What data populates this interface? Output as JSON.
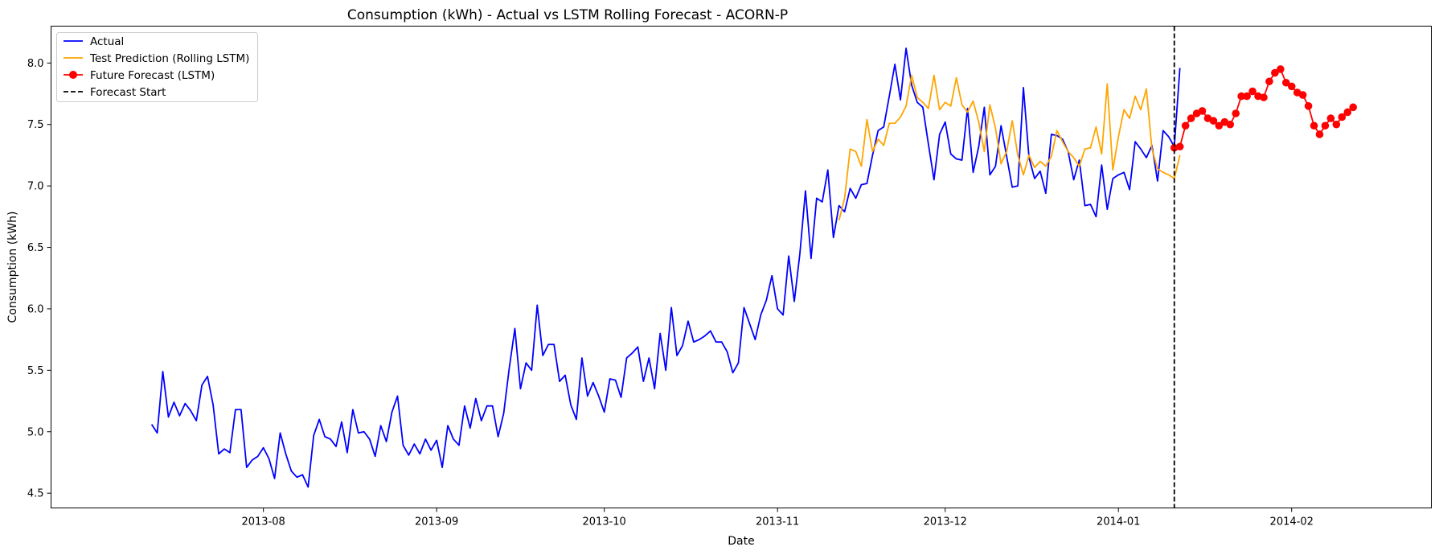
{
  "chart_data": {
    "type": "line",
    "title": "Consumption (kWh) - Actual vs LSTM Rolling Forecast - ACORN-P",
    "xlabel": "Date",
    "ylabel": "Consumption (kWh)",
    "x_range": [
      "2013-06-24",
      "2014-02-26"
    ],
    "ylim": [
      4.38,
      8.3
    ],
    "x_ticks": [
      "2013-08-01",
      "2013-09-01",
      "2013-10-01",
      "2013-11-01",
      "2013-12-01",
      "2014-01-01",
      "2014-02-01"
    ],
    "x_tick_labels": [
      "2013-08",
      "2013-09",
      "2013-10",
      "2013-11",
      "2013-12",
      "2014-01",
      "2014-02"
    ],
    "y_ticks": [
      4.5,
      5.0,
      5.5,
      6.0,
      6.5,
      7.0,
      7.5,
      8.0
    ],
    "y_tick_labels": [
      "4.5",
      "5.0",
      "5.5",
      "6.0",
      "6.5",
      "7.0",
      "7.5",
      "8.0"
    ],
    "grid": false,
    "legend_position": "top-left",
    "forecast_start": "2014-01-11",
    "series": [
      {
        "name": "Actual",
        "color": "#0000ff",
        "marker": "none",
        "start": "2013-07-12",
        "values": [
          5.06,
          4.99,
          5.49,
          5.12,
          5.24,
          5.13,
          5.23,
          5.17,
          5.09,
          5.38,
          5.45,
          5.22,
          4.82,
          4.86,
          4.83,
          5.18,
          5.18,
          4.71,
          4.77,
          4.8,
          4.87,
          4.78,
          4.62,
          4.99,
          4.82,
          4.68,
          4.63,
          4.65,
          4.55,
          4.97,
          5.1,
          4.96,
          4.94,
          4.88,
          5.08,
          4.83,
          5.18,
          4.99,
          5.0,
          4.94,
          4.8,
          5.05,
          4.92,
          5.16,
          5.29,
          4.89,
          4.81,
          4.9,
          4.82,
          4.94,
          4.85,
          4.93,
          4.71,
          5.05,
          4.94,
          4.89,
          5.21,
          5.03,
          5.27,
          5.09,
          5.21,
          5.21,
          4.96,
          5.15,
          5.52,
          5.84,
          5.35,
          5.56,
          5.5,
          6.03,
          5.62,
          5.71,
          5.71,
          5.41,
          5.46,
          5.22,
          5.1,
          5.6,
          5.29,
          5.4,
          5.29,
          5.16,
          5.43,
          5.42,
          5.28,
          5.6,
          5.64,
          5.69,
          5.41,
          5.6,
          5.35,
          5.8,
          5.5,
          6.01,
          5.62,
          5.7,
          5.9,
          5.73,
          5.75,
          5.78,
          5.82,
          5.73,
          5.73,
          5.65,
          5.48,
          5.56,
          6.01,
          5.88,
          5.75,
          5.95,
          6.07,
          6.27,
          6.0,
          5.95,
          6.43,
          6.06,
          6.45,
          6.96,
          6.41,
          6.9,
          6.87,
          7.13,
          6.58,
          6.84,
          6.79,
          6.98,
          6.9,
          7.01,
          7.02,
          7.25,
          7.45,
          7.48,
          7.73,
          7.99,
          7.7,
          8.12,
          7.82,
          7.68,
          7.64,
          7.34,
          7.05,
          7.42,
          7.52,
          7.26,
          7.22,
          7.21,
          7.63,
          7.11,
          7.32,
          7.64,
          7.09,
          7.16,
          7.49,
          7.24,
          6.99,
          7.0,
          7.8,
          7.23,
          7.06,
          7.12,
          6.94,
          7.42,
          7.41,
          7.38,
          7.28,
          7.05,
          7.21,
          6.84,
          6.85,
          6.75,
          7.17,
          6.81,
          7.06,
          7.09,
          7.11,
          6.97,
          7.36,
          7.3,
          7.23,
          7.33,
          7.04,
          7.45,
          7.4,
          7.32,
          7.96
        ]
      },
      {
        "name": "Test Prediction (Rolling LSTM)",
        "color": "#ffa500",
        "marker": "none",
        "start": "2013-11-12",
        "values": [
          6.72,
          6.9,
          7.3,
          7.28,
          7.16,
          7.54,
          7.28,
          7.38,
          7.33,
          7.51,
          7.51,
          7.56,
          7.65,
          7.9,
          7.72,
          7.68,
          7.63,
          7.9,
          7.62,
          7.68,
          7.65,
          7.88,
          7.66,
          7.6,
          7.69,
          7.52,
          7.28,
          7.66,
          7.47,
          7.18,
          7.28,
          7.53,
          7.25,
          7.09,
          7.25,
          7.15,
          7.2,
          7.16,
          7.24,
          7.45,
          7.36,
          7.28,
          7.23,
          7.16,
          7.3,
          7.31,
          7.48,
          7.26,
          7.83,
          7.13,
          7.4,
          7.62,
          7.55,
          7.73,
          7.62,
          7.79,
          7.3,
          7.14,
          7.11,
          7.09,
          7.06,
          7.25
        ]
      },
      {
        "name": "Future Forecast (LSTM)",
        "color": "#ff0000",
        "marker": "circle",
        "start": "2014-01-11",
        "values": [
          7.31,
          7.32,
          7.49,
          7.55,
          7.59,
          7.61,
          7.55,
          7.53,
          7.49,
          7.52,
          7.5,
          7.59,
          7.73,
          7.73,
          7.77,
          7.73,
          7.72,
          7.85,
          7.92,
          7.95,
          7.84,
          7.81,
          7.76,
          7.74,
          7.65,
          7.49,
          7.42,
          7.49,
          7.55,
          7.5,
          7.56,
          7.6,
          7.64
        ]
      }
    ],
    "legend": [
      "Actual",
      "Test Prediction (Rolling LSTM)",
      "Future Forecast (LSTM)",
      "Forecast Start"
    ],
    "annotations": [
      {
        "type": "vline",
        "label": "Forecast Start",
        "x": "2014-01-11",
        "color": "#000000",
        "style": "dashed"
      }
    ]
  }
}
